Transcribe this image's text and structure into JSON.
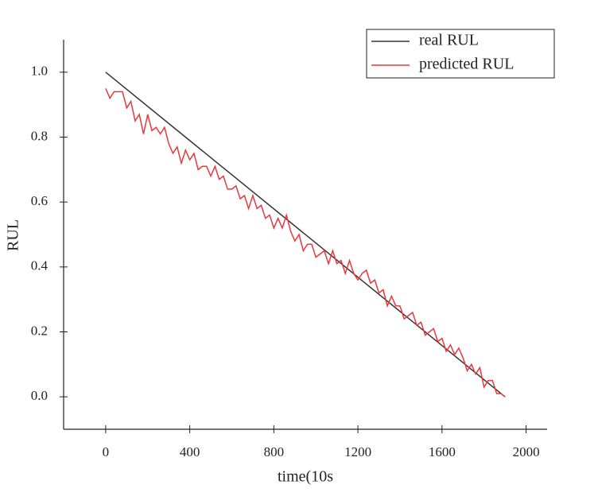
{
  "chart_data": {
    "type": "line",
    "xlabel": "time(10s",
    "ylabel": "RUL",
    "xlim": [
      -200,
      2100
    ],
    "ylim": [
      -0.1,
      1.1
    ],
    "xticks": [
      0,
      400,
      800,
      1200,
      1600,
      2000
    ],
    "yticks": [
      {
        "value": 0,
        "label": "0.0"
      },
      0.2,
      0.4,
      0.6,
      0.8,
      {
        "value": 1,
        "label": "1.0"
      }
    ],
    "legend": "upper right",
    "series": [
      {
        "name": "real RUL",
        "color": "#333333",
        "x": [
          0,
          1900
        ],
        "values": [
          1,
          0
        ]
      },
      {
        "name": "predicted RUL",
        "color": "#e8383d",
        "x": [
          0,
          20,
          40,
          60,
          80,
          100,
          120,
          140,
          160,
          180,
          200,
          220,
          240,
          260,
          280,
          300,
          320,
          340,
          360,
          380,
          400,
          420,
          440,
          460,
          480,
          500,
          520,
          540,
          560,
          580,
          600,
          620,
          640,
          660,
          680,
          700,
          720,
          740,
          760,
          780,
          800,
          820,
          840,
          860,
          880,
          900,
          920,
          940,
          960,
          980,
          1000,
          1020,
          1040,
          1060,
          1080,
          1100,
          1120,
          1140,
          1160,
          1180,
          1200,
          1220,
          1240,
          1260,
          1280,
          1300,
          1320,
          1340,
          1360,
          1380,
          1400,
          1420,
          1440,
          1460,
          1480,
          1500,
          1520,
          1540,
          1560,
          1580,
          1600,
          1620,
          1640,
          1660,
          1680,
          1700,
          1720,
          1740,
          1760,
          1780,
          1800,
          1820,
          1840,
          1860,
          1880,
          1900
        ],
        "values": [
          0.95,
          0.92,
          0.94,
          0.94,
          0.94,
          0.89,
          0.91,
          0.85,
          0.87,
          0.81,
          0.87,
          0.82,
          0.83,
          0.81,
          0.83,
          0.78,
          0.75,
          0.77,
          0.72,
          0.76,
          0.73,
          0.75,
          0.7,
          0.71,
          0.71,
          0.68,
          0.71,
          0.67,
          0.68,
          0.64,
          0.64,
          0.65,
          0.61,
          0.62,
          0.58,
          0.62,
          0.58,
          0.59,
          0.55,
          0.56,
          0.52,
          0.55,
          0.52,
          0.56,
          0.51,
          0.48,
          0.5,
          0.45,
          0.47,
          0.47,
          0.43,
          0.44,
          0.45,
          0.41,
          0.45,
          0.41,
          0.42,
          0.38,
          0.42,
          0.38,
          0.36,
          0.38,
          0.39,
          0.35,
          0.36,
          0.32,
          0.33,
          0.28,
          0.31,
          0.28,
          0.28,
          0.24,
          0.25,
          0.26,
          0.22,
          0.23,
          0.19,
          0.2,
          0.21,
          0.17,
          0.18,
          0.14,
          0.16,
          0.13,
          0.15,
          0.12,
          0.08,
          0.1,
          0.07,
          0.09,
          0.03,
          0.05,
          0.05,
          0.01,
          0.01,
          0.0
        ]
      }
    ]
  }
}
